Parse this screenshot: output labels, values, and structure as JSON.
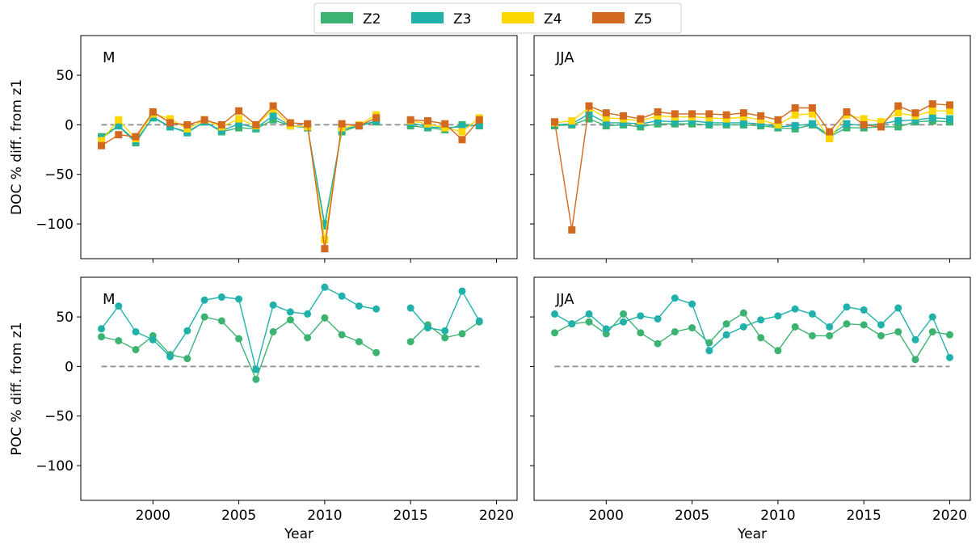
{
  "legend": {
    "items": [
      {
        "name": "Z2",
        "color": "#3cb371"
      },
      {
        "name": "Z3",
        "color": "#20b2aa"
      },
      {
        "name": "Z4",
        "color": "#ffd700"
      },
      {
        "name": "Z5",
        "color": "#d2691e"
      }
    ]
  },
  "chart_data": [
    {
      "type": "line",
      "panel_label": "M",
      "ylabel": "DOC % diff. from z1",
      "xlabel": "",
      "xlim": [
        1995.8,
        2021.2
      ],
      "ylim": [
        -135,
        90
      ],
      "xticks": [
        2000,
        2005,
        2010,
        2015,
        2020
      ],
      "yticks": [
        50,
        0,
        -50,
        -100
      ],
      "grid": false,
      "marker": "square",
      "reference_line": 0,
      "x": [
        1997,
        1998,
        1999,
        2000,
        2001,
        2002,
        2003,
        2004,
        2005,
        2006,
        2007,
        2008,
        2009,
        2010,
        2011,
        2012,
        2013,
        2014,
        2015,
        2016,
        2017,
        2018,
        2019
      ],
      "series": [
        {
          "name": "Z2",
          "values": [
            -12,
            -1,
            -18,
            8,
            -2,
            -7,
            3,
            -7,
            -3,
            -4,
            5,
            -1,
            -3,
            -100,
            -7,
            -1,
            3,
            null,
            -1,
            -3,
            -5,
            0,
            -1
          ]
        },
        {
          "name": "Z3",
          "values": [
            -14,
            -1,
            -16,
            7,
            -2,
            -8,
            3,
            -6,
            1,
            -3,
            9,
            -1,
            -3,
            -102,
            -5,
            -1,
            4,
            null,
            2,
            -2,
            -3,
            -2,
            0
          ]
        },
        {
          "name": "Z4",
          "values": [
            -16,
            5,
            -14,
            11,
            6,
            -4,
            5,
            -2,
            6,
            -1,
            16,
            -1,
            -2,
            -116,
            -3,
            0,
            10,
            null,
            4,
            1,
            -3,
            -7,
            7
          ]
        },
        {
          "name": "Z5",
          "values": [
            -21,
            -10,
            -12,
            13,
            2,
            0,
            5,
            0,
            14,
            0,
            19,
            2,
            1,
            -125,
            1,
            -1,
            7,
            null,
            5,
            4,
            1,
            -15,
            5
          ]
        }
      ]
    },
    {
      "type": "line",
      "panel_label": "JJA",
      "ylabel": "",
      "xlabel": "",
      "xlim": [
        1995.8,
        2021.2
      ],
      "ylim": [
        -135,
        90
      ],
      "xticks": [
        2000,
        2005,
        2010,
        2015,
        2020
      ],
      "yticks": [
        50,
        0,
        -50,
        -100
      ],
      "grid": false,
      "marker": "square",
      "reference_line": 0,
      "x": [
        1997,
        1998,
        1999,
        2000,
        2001,
        2002,
        2003,
        2004,
        2005,
        2006,
        2007,
        2008,
        2009,
        2010,
        2011,
        2012,
        2013,
        2014,
        2015,
        2016,
        2017,
        2018,
        2019,
        2020
      ],
      "series": [
        {
          "name": "Z2",
          "values": [
            -1,
            0,
            6,
            -1,
            0,
            -2,
            1,
            1,
            1,
            0,
            0,
            0,
            -1,
            -3,
            -4,
            0,
            -12,
            -3,
            -3,
            -2,
            -2,
            3,
            4,
            3
          ]
        },
        {
          "name": "Z3",
          "values": [
            0,
            1,
            11,
            2,
            2,
            1,
            4,
            3,
            4,
            2,
            2,
            2,
            1,
            -2,
            -1,
            1,
            -11,
            1,
            -1,
            1,
            4,
            5,
            7,
            6
          ]
        },
        {
          "name": "Z4",
          "values": [
            2,
            4,
            17,
            7,
            6,
            4,
            9,
            8,
            8,
            7,
            6,
            8,
            5,
            0,
            10,
            11,
            -14,
            10,
            6,
            3,
            12,
            9,
            14,
            14
          ]
        },
        {
          "name": "Z5",
          "values": [
            3,
            -106,
            19,
            12,
            9,
            6,
            13,
            11,
            11,
            11,
            10,
            12,
            9,
            5,
            17,
            17,
            -7,
            13,
            0,
            -2,
            19,
            12,
            21,
            20
          ]
        }
      ]
    },
    {
      "type": "line",
      "panel_label": "M",
      "ylabel": "POC % diff. from z1",
      "xlabel": "Year",
      "xlim": [
        1995.8,
        2021.2
      ],
      "ylim": [
        -135,
        90
      ],
      "xticks": [
        2000,
        2005,
        2010,
        2015,
        2020
      ],
      "yticks": [
        50,
        0,
        -50,
        -100
      ],
      "grid": false,
      "marker": "circle",
      "reference_line": 0,
      "x": [
        1997,
        1998,
        1999,
        2000,
        2001,
        2002,
        2003,
        2004,
        2005,
        2006,
        2007,
        2008,
        2009,
        2010,
        2011,
        2012,
        2013,
        2014,
        2015,
        2016,
        2017,
        2018,
        2019
      ],
      "series": [
        {
          "name": "Z2",
          "values": [
            30,
            26,
            17,
            31,
            12,
            8,
            50,
            46,
            28,
            -13,
            35,
            47,
            29,
            49,
            32,
            25,
            14,
            null,
            25,
            42,
            29,
            33,
            45
          ]
        },
        {
          "name": "Z3",
          "values": [
            38,
            61,
            35,
            27,
            10,
            36,
            67,
            70,
            68,
            -3,
            62,
            55,
            53,
            80,
            71,
            61,
            58,
            null,
            59,
            39,
            36,
            76,
            46
          ]
        }
      ]
    },
    {
      "type": "line",
      "panel_label": "JJA",
      "ylabel": "",
      "xlabel": "Year",
      "xlim": [
        1995.8,
        2021.2
      ],
      "ylim": [
        -135,
        90
      ],
      "xticks": [
        2000,
        2005,
        2010,
        2015,
        2020
      ],
      "yticks": [
        50,
        0,
        -50,
        -100
      ],
      "grid": false,
      "marker": "circle",
      "reference_line": 0,
      "x": [
        1997,
        1998,
        1999,
        2000,
        2001,
        2002,
        2003,
        2004,
        2005,
        2006,
        2007,
        2008,
        2009,
        2010,
        2011,
        2012,
        2013,
        2014,
        2015,
        2016,
        2017,
        2018,
        2019,
        2020
      ],
      "series": [
        {
          "name": "Z2",
          "values": [
            34,
            43,
            45,
            33,
            53,
            34,
            23,
            35,
            39,
            24,
            43,
            54,
            29,
            16,
            40,
            31,
            31,
            43,
            42,
            31,
            35,
            7,
            35,
            32
          ]
        },
        {
          "name": "Z3",
          "values": [
            53,
            43,
            53,
            38,
            45,
            51,
            48,
            69,
            63,
            16,
            32,
            40,
            47,
            51,
            58,
            53,
            40,
            60,
            57,
            42,
            59,
            27,
            50,
            9
          ]
        }
      ]
    }
  ]
}
